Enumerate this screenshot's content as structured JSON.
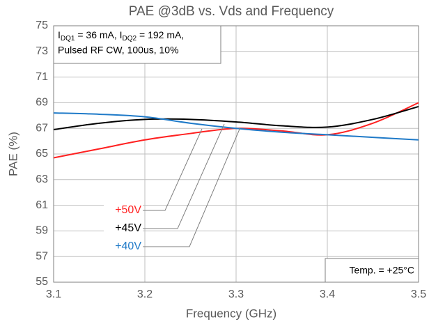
{
  "chart_data": {
    "type": "line",
    "title": "PAE @3dB vs. Vds and Frequency",
    "x_label": "Frequency (GHz)",
    "y_label": "PAE (%)",
    "x": [
      3.1,
      3.15,
      3.2,
      3.25,
      3.3,
      3.35,
      3.4,
      3.45,
      3.5
    ],
    "series": [
      {
        "name": "+50V",
        "color": "#ff2020",
        "values": [
          64.7,
          65.4,
          66.1,
          66.6,
          67.0,
          66.8,
          66.5,
          67.4,
          69.0
        ]
      },
      {
        "name": "+45V",
        "color": "#000000",
        "values": [
          66.9,
          67.4,
          67.7,
          67.7,
          67.5,
          67.2,
          67.1,
          67.7,
          68.7
        ]
      },
      {
        "name": "+40V",
        "color": "#1f7ac8",
        "values": [
          68.2,
          68.1,
          67.9,
          67.4,
          67.0,
          66.7,
          66.5,
          66.3,
          66.1
        ]
      }
    ],
    "xlim": [
      3.1,
      3.5
    ],
    "xticks": [
      {
        "value": 3.1,
        "label": "3.1"
      },
      {
        "value": 3.2,
        "label": "3.2"
      },
      {
        "value": 3.3,
        "label": "3.3"
      },
      {
        "value": 3.4,
        "label": "3.4"
      },
      {
        "value": 3.5,
        "label": "3.5"
      }
    ],
    "ylim": [
      55,
      75
    ],
    "yticks": [
      55,
      57,
      59,
      61,
      63,
      65,
      67,
      69,
      71,
      73,
      75
    ],
    "grid": true,
    "note": {
      "parts": [
        "I",
        "DQ1",
        " = 36 mA, I",
        "DQ2",
        " = 192 mA,"
      ],
      "line2": "Pulsed RF CW, 100us, 10%"
    },
    "temperature": "Temp. = +25°C"
  }
}
